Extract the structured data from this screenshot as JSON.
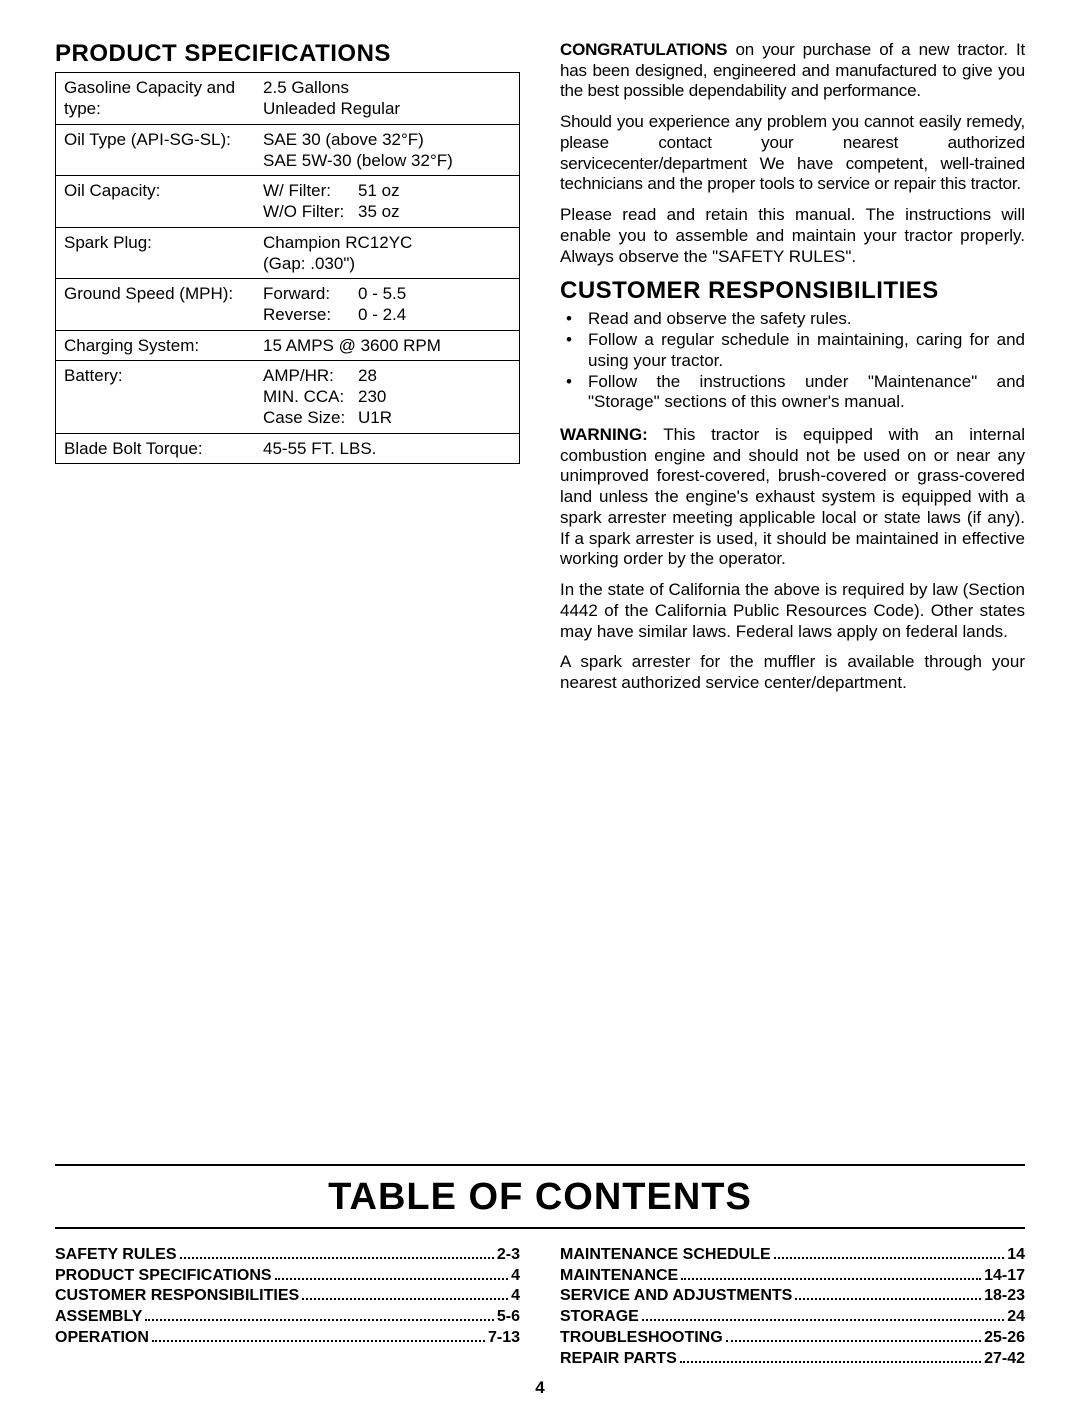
{
  "left": {
    "heading": "PRODUCT SPECIFICATIONS",
    "rows": [
      {
        "label": "Gasoline Capacity and type:",
        "value": "2.5 Gallons\nUnleaded Regular"
      },
      {
        "label": "Oil Type (API-SG-SL):",
        "value": "SAE 30 (above 32°F)\nSAE 5W-30 (below 32°F)"
      },
      {
        "label": "Oil Capacity:",
        "value_pairs": [
          {
            "k": "W/ Filter:",
            "v": "51 oz"
          },
          {
            "k": "W/O Filter:",
            "v": "35 oz"
          }
        ]
      },
      {
        "label": "Spark Plug:",
        "value": "Champion RC12YC\n(Gap: .030\")"
      },
      {
        "label": "Ground Speed (MPH):",
        "value_pairs": [
          {
            "k": "Forward:",
            "v": "0 - 5.5"
          },
          {
            "k": "Reverse:",
            "v": "0 - 2.4"
          }
        ]
      },
      {
        "label": "Charging System:",
        "value": "15 AMPS @ 3600 RPM"
      },
      {
        "label": "Battery:",
        "value_pairs": [
          {
            "k": "AMP/HR:",
            "v": "28"
          },
          {
            "k": "MIN. CCA:",
            "v": "230"
          },
          {
            "k": "Case Size:",
            "v": "U1R"
          }
        ]
      },
      {
        "label": "Blade Bolt Torque:",
        "value": "45-55 FT. LBS."
      }
    ]
  },
  "right": {
    "p1_bold": "CONGRATULATIONS",
    "p1_rest": " on your purchase of a new tractor. It has been designed, engineered and manufactured to give you the best possible dependability and performance.",
    "p2": "Should you experience any problem you cannot easily remedy, please contact your nearest authorized servicecenter/department We have competent, well-trained technicians and the proper tools to service or repair this tractor.",
    "p3": "Please read and retain this manual. The instructions will enable you to assemble and maintain your tractor properly. Always observe the \"SAFETY RULES\".",
    "heading2": "CUSTOMER RESPONSIBILITIES",
    "bullets": [
      "Read and observe the safety rules.",
      "Follow a regular schedule in maintaining, caring for and using your tractor.",
      "Follow the instructions under \"Maintenance\" and \"Storage\" sections of this owner's manual."
    ],
    "p4_bold": "WARNING:",
    "p4_rest": " This tractor is equipped with an internal combustion engine and should not be used on or near any unimproved forest-covered, brush-covered or grass-covered land unless the engine's exhaust system is equipped with a spark arrester meeting applicable local or state laws (if any). If a spark arrester is used, it should be maintained in effective working order by the operator.",
    "p5": "In the state of California the above is required by law (Section 4442 of the California Public Resources Code). Other states may have similar laws. Federal laws apply on federal lands.",
    "p6": "A spark arrester for the muffler is available through your nearest authorized service center/department."
  },
  "toc": {
    "title": "TABLE OF CONTENTS",
    "left": [
      {
        "t": "SAFETY RULES",
        "p": "2-3"
      },
      {
        "t": "PRODUCT SPECIFICATIONS",
        "p": "4"
      },
      {
        "t": "CUSTOMER RESPONSIBILITIES",
        "p": "4"
      },
      {
        "t": "ASSEMBLY",
        "p": "5-6"
      },
      {
        "t": "OPERATION",
        "p": "7-13"
      }
    ],
    "right": [
      {
        "t": "MAINTENANCE SCHEDULE",
        "p": "14"
      },
      {
        "t": "MAINTENANCE",
        "p": "14-17"
      },
      {
        "t": "SERVICE AND ADJUSTMENTS",
        "p": "18-23"
      },
      {
        "t": "STORAGE",
        "p": "24"
      },
      {
        "t": "TROUBLESHOOTING",
        "p": "25-26"
      },
      {
        "t": "REPAIR PARTS",
        "p": "27-42"
      }
    ]
  },
  "page_number": "4"
}
